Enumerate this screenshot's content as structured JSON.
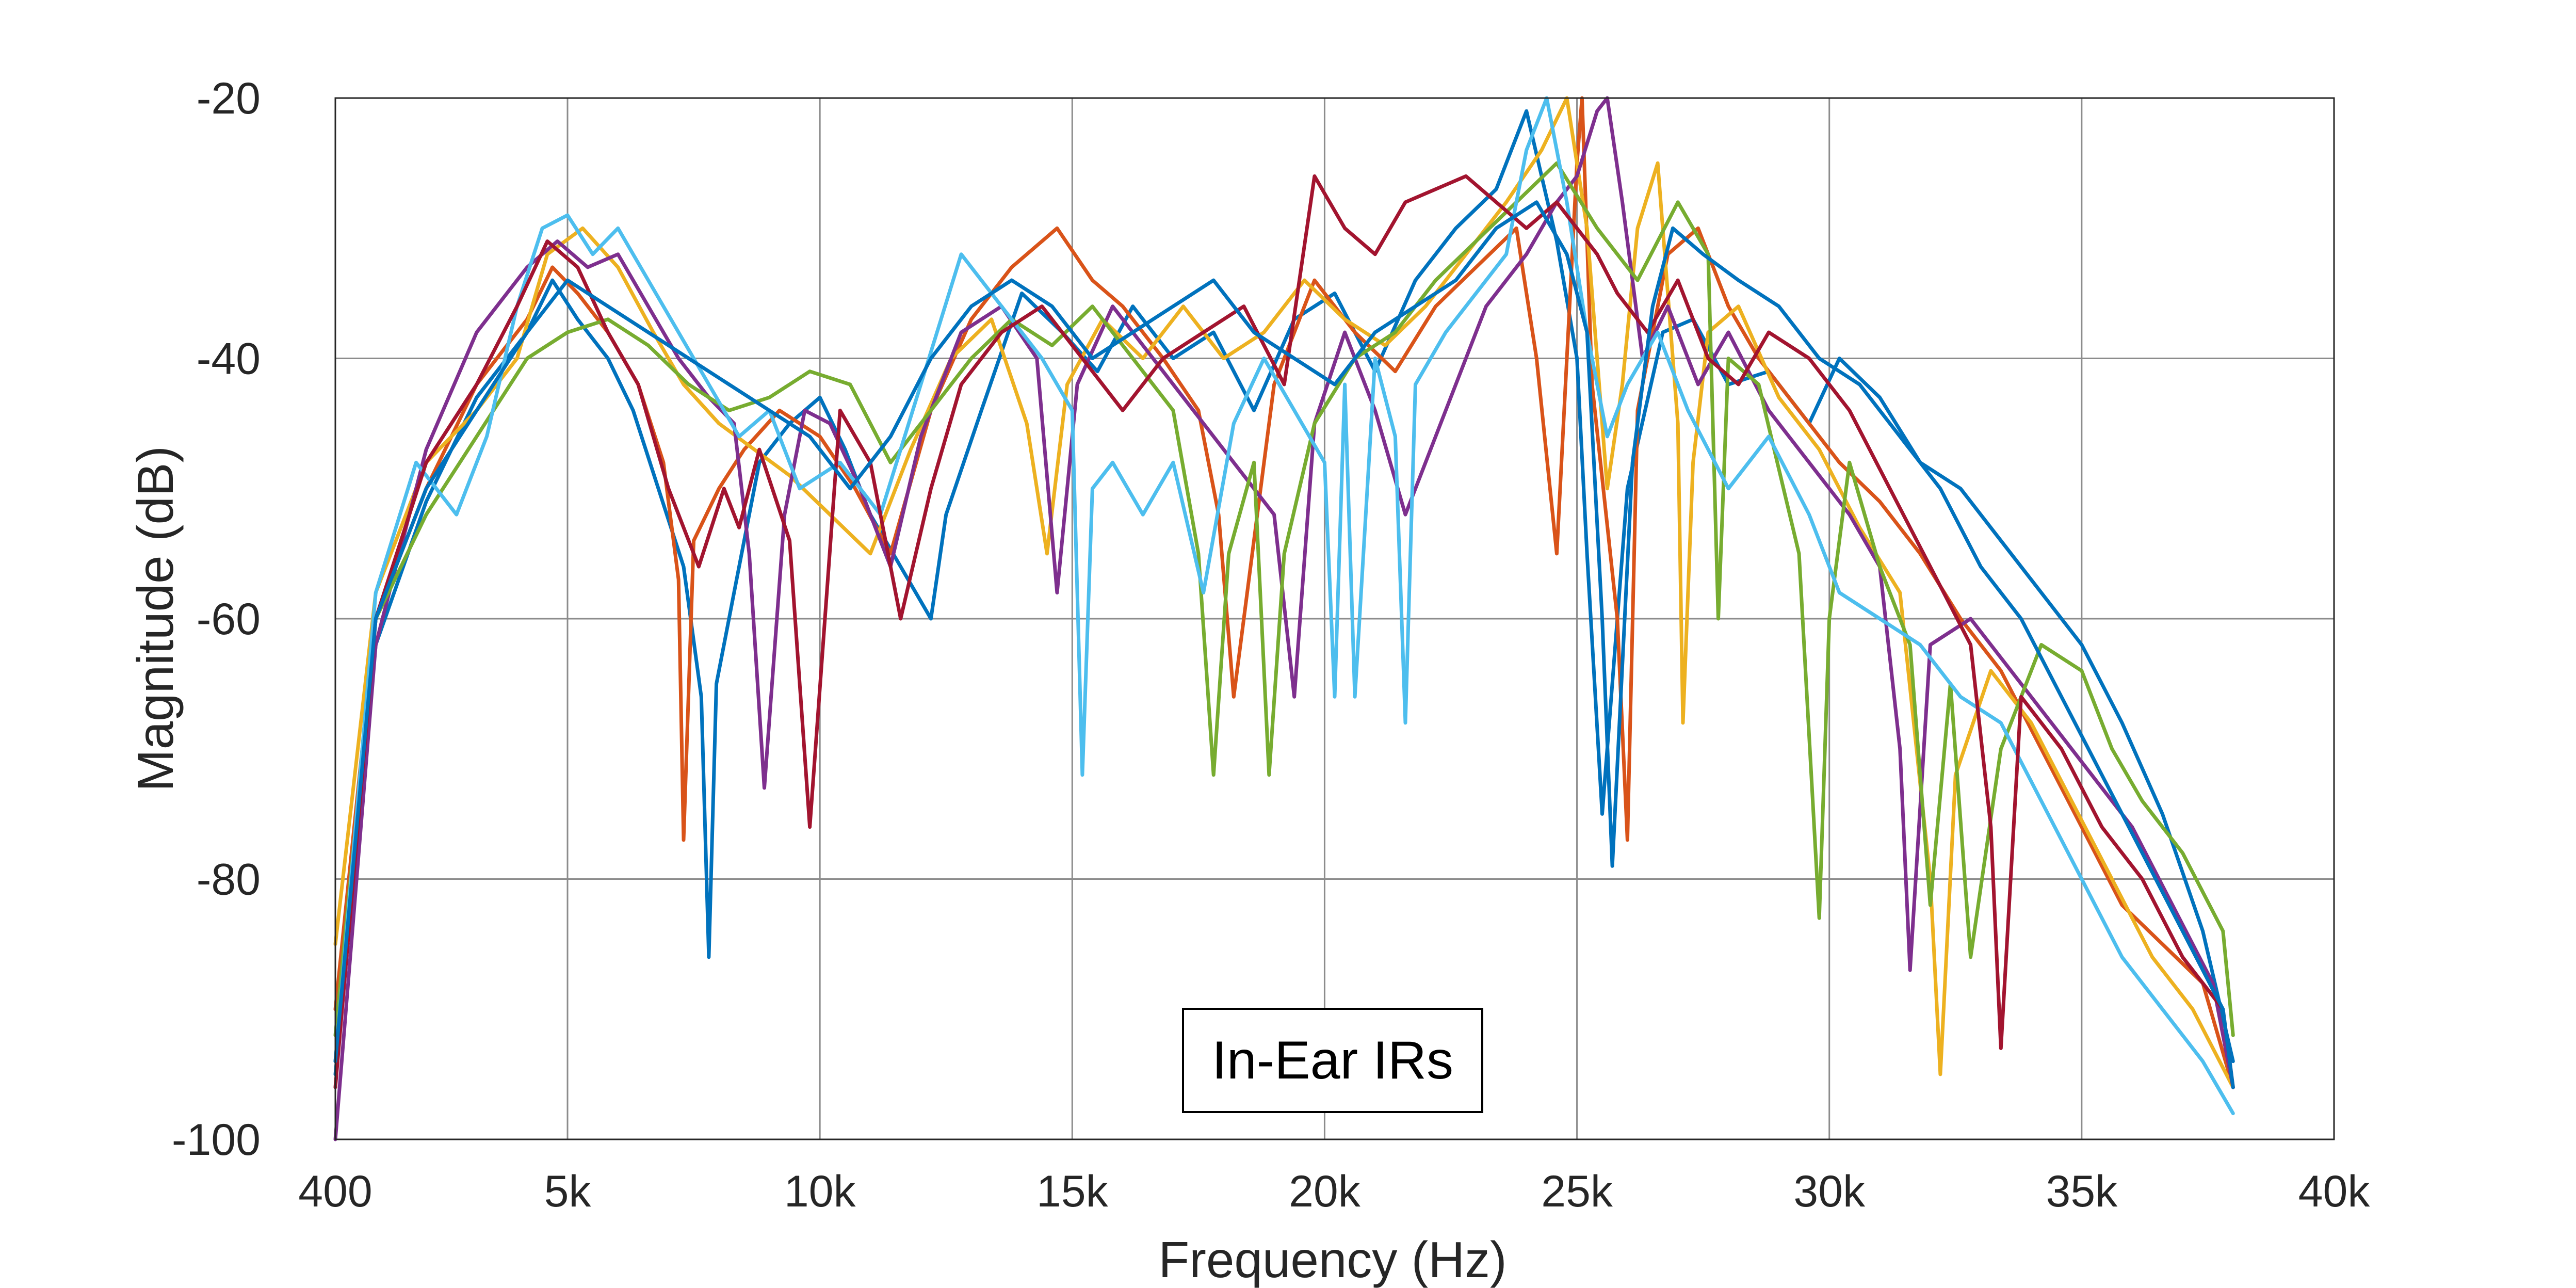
{
  "chart_data": {
    "type": "line",
    "title": "",
    "xlabel": "Frequency (Hz)",
    "ylabel": "Magnitude (dB)",
    "xlim": [
      400,
      40000
    ],
    "ylim": [
      -100,
      -20
    ],
    "x_ticks": [
      400,
      5000,
      10000,
      15000,
      20000,
      25000,
      30000,
      35000,
      40000
    ],
    "x_tick_labels": [
      "400",
      "5k",
      "10k",
      "15k",
      "20k",
      "25k",
      "30k",
      "35k",
      "40k"
    ],
    "y_ticks": [
      -100,
      -80,
      -60,
      -40,
      -20
    ],
    "y_tick_labels": [
      "-100",
      "-80",
      "-60",
      "-40",
      "-20"
    ],
    "grid": true,
    "legend": "none",
    "annotation": "In-Ear IRs",
    "series_note_count": 8,
    "series": [
      {
        "color": "#0072BD",
        "x": [
          400,
          1200,
          2200,
          3200,
          4200,
          4700,
          5200,
          5800,
          6300,
          6800,
          7300,
          7650,
          7800,
          7950,
          8300,
          8800,
          9400,
          10000,
          10500,
          11000,
          11600,
          12200,
          12500,
          13200,
          14000,
          14800,
          15500,
          16200,
          17000,
          17800,
          18600,
          19400,
          20200,
          21000,
          21800,
          22600,
          23400,
          24000,
          24600,
          25000,
          25200,
          25500,
          26000,
          26700,
          27300,
          28000,
          28800,
          29600,
          30200,
          31000,
          31800,
          32600,
          33400,
          34200,
          35000,
          35800,
          36600,
          37400,
          38000
        ],
        "y": [
          -95,
          -62,
          -51,
          -43,
          -38,
          -34,
          -37,
          -40,
          -44,
          -50,
          -56,
          -66,
          -86,
          -65,
          -58,
          -48,
          -45,
          -43,
          -47,
          -52,
          -56,
          -60,
          -52,
          -44,
          -35,
          -38,
          -41,
          -36,
          -40,
          -38,
          -44,
          -37,
          -35,
          -41,
          -34,
          -30,
          -27,
          -21,
          -31,
          -40,
          -55,
          -75,
          -50,
          -38,
          -37,
          -42,
          -41,
          -45,
          -40,
          -43,
          -48,
          -50,
          -54,
          -58,
          -62,
          -68,
          -75,
          -84,
          -94
        ]
      },
      {
        "color": "#D95319",
        "x": [
          400,
          1200,
          2200,
          3200,
          4200,
          4700,
          5200,
          5800,
          6400,
          6900,
          7200,
          7300,
          7500,
          8000,
          8500,
          9200,
          10000,
          10700,
          11400,
          12200,
          13000,
          13800,
          14700,
          15400,
          16000,
          16800,
          17500,
          17900,
          18200,
          19000,
          19800,
          20600,
          21400,
          22200,
          23000,
          23800,
          24200,
          24600,
          25000,
          25100,
          25300,
          25800,
          26000,
          26200,
          26800,
          27400,
          28000,
          28600,
          29400,
          30200,
          31000,
          31800,
          32600,
          33400,
          34200,
          35000,
          35800,
          36600,
          37400,
          38000
        ],
        "y": [
          -90,
          -60,
          -50,
          -42,
          -37,
          -33,
          -35,
          -38,
          -42,
          -48,
          -57,
          -77,
          -54,
          -50,
          -47,
          -44,
          -46,
          -50,
          -55,
          -44,
          -37,
          -33,
          -30,
          -34,
          -36,
          -40,
          -44,
          -52,
          -66,
          -42,
          -34,
          -38,
          -41,
          -36,
          -33,
          -30,
          -40,
          -55,
          -25,
          -20,
          -42,
          -60,
          -77,
          -44,
          -32,
          -30,
          -36,
          -40,
          -44,
          -48,
          -51,
          -55,
          -60,
          -64,
          -70,
          -76,
          -82,
          -85,
          -88,
          -96
        ]
      },
      {
        "color": "#EDB120",
        "x": [
          400,
          1200,
          2200,
          3200,
          4000,
          4600,
          5300,
          6000,
          6700,
          7300,
          8000,
          8700,
          9400,
          10200,
          11000,
          11800,
          12600,
          13400,
          14100,
          14500,
          14900,
          15600,
          16400,
          17200,
          18000,
          18800,
          19600,
          20400,
          21200,
          22000,
          22800,
          23600,
          24300,
          24800,
          25200,
          25600,
          25900,
          26200,
          26600,
          27000,
          27100,
          27300,
          27600,
          28200,
          29000,
          29800,
          30600,
          31400,
          32000,
          32200,
          32500,
          33200,
          34000,
          34800,
          35600,
          36400,
          37200,
          38000
        ],
        "y": [
          -85,
          -58,
          -48,
          -44,
          -40,
          -32,
          -30,
          -33,
          -38,
          -42,
          -45,
          -47,
          -49,
          -52,
          -55,
          -47,
          -40,
          -37,
          -45,
          -55,
          -42,
          -37,
          -40,
          -36,
          -40,
          -38,
          -34,
          -37,
          -39,
          -36,
          -32,
          -28,
          -24,
          -20,
          -30,
          -50,
          -42,
          -30,
          -25,
          -45,
          -68,
          -48,
          -38,
          -36,
          -43,
          -47,
          -53,
          -58,
          -80,
          -95,
          -72,
          -64,
          -68,
          -74,
          -80,
          -86,
          -90,
          -96
        ]
      },
      {
        "color": "#7E2F8E",
        "x": [
          400,
          1200,
          2200,
          3200,
          4200,
          4800,
          5400,
          6000,
          6600,
          7200,
          7800,
          8300,
          8600,
          8900,
          9300,
          9700,
          10200,
          10800,
          11400,
          12000,
          12800,
          13600,
          14300,
          14700,
          15100,
          15800,
          16600,
          17400,
          18200,
          19000,
          19400,
          19800,
          20400,
          21000,
          21600,
          22400,
          23200,
          24000,
          24600,
          25000,
          25400,
          25600,
          25900,
          26300,
          26800,
          27400,
          28000,
          28800,
          29600,
          30400,
          31000,
          31400,
          31600,
          32000,
          32800,
          33600,
          34400,
          35200,
          36000,
          36800,
          37600,
          38000
        ],
        "y": [
          -100,
          -62,
          -47,
          -38,
          -33,
          -31,
          -33,
          -32,
          -36,
          -40,
          -43,
          -45,
          -55,
          -73,
          -52,
          -44,
          -45,
          -50,
          -56,
          -46,
          -38,
          -36,
          -40,
          -58,
          -42,
          -36,
          -40,
          -44,
          -48,
          -52,
          -66,
          -45,
          -38,
          -44,
          -52,
          -44,
          -36,
          -32,
          -28,
          -26,
          -21,
          -20,
          -28,
          -40,
          -36,
          -42,
          -38,
          -44,
          -48,
          -52,
          -56,
          -70,
          -87,
          -62,
          -60,
          -64,
          -68,
          -72,
          -76,
          -82,
          -88,
          -96
        ]
      },
      {
        "color": "#77AC30",
        "x": [
          400,
          1200,
          2200,
          3200,
          4200,
          5000,
          5800,
          6600,
          7400,
          8200,
          9000,
          9800,
          10600,
          11400,
          12200,
          13000,
          13800,
          14600,
          15400,
          16200,
          17000,
          17500,
          17800,
          18100,
          18600,
          18900,
          19200,
          19800,
          20600,
          21400,
          22200,
          23000,
          23800,
          24600,
          25400,
          26200,
          27000,
          27600,
          27800,
          28000,
          28600,
          29400,
          29800,
          30000,
          30400,
          31000,
          31600,
          32000,
          32400,
          32800,
          33400,
          34200,
          35000,
          35600,
          36200,
          37000,
          37800,
          38000
        ],
        "y": [
          -92,
          -60,
          -52,
          -46,
          -40,
          -38,
          -37,
          -39,
          -42,
          -44,
          -43,
          -41,
          -42,
          -48,
          -44,
          -40,
          -37,
          -39,
          -36,
          -40,
          -44,
          -55,
          -72,
          -55,
          -48,
          -72,
          -55,
          -45,
          -40,
          -38,
          -34,
          -31,
          -28,
          -25,
          -30,
          -34,
          -28,
          -32,
          -60,
          -40,
          -42,
          -55,
          -83,
          -60,
          -48,
          -56,
          -62,
          -82,
          -65,
          -86,
          -70,
          -62,
          -64,
          -70,
          -74,
          -78,
          -84,
          -92
        ]
      },
      {
        "color": "#4DBEEE",
        "x": [
          400,
          1200,
          2000,
          2800,
          3400,
          4000,
          4500,
          5000,
          5500,
          6000,
          6600,
          7200,
          7800,
          8400,
          9000,
          9600,
          10400,
          11200,
          12000,
          12800,
          13600,
          14400,
          15000,
          15200,
          15400,
          15800,
          16400,
          17000,
          17600,
          18200,
          18800,
          19400,
          20000,
          20200,
          20400,
          20600,
          21000,
          21400,
          21600,
          21800,
          22400,
          23000,
          23600,
          24000,
          24400,
          24800,
          25200,
          25600,
          26000,
          26600,
          27200,
          28000,
          28800,
          29600,
          30200,
          31000,
          31800,
          32600,
          33400,
          34200,
          35000,
          35800,
          36600,
          37400,
          38000
        ],
        "y": [
          -94,
          -58,
          -48,
          -52,
          -46,
          -36,
          -30,
          -29,
          -32,
          -30,
          -34,
          -38,
          -42,
          -46,
          -44,
          -50,
          -48,
          -52,
          -42,
          -32,
          -36,
          -40,
          -44,
          -72,
          -50,
          -48,
          -52,
          -48,
          -58,
          -45,
          -40,
          -44,
          -48,
          -66,
          -42,
          -66,
          -40,
          -46,
          -68,
          -42,
          -38,
          -35,
          -32,
          -24,
          -20,
          -28,
          -38,
          -46,
          -42,
          -38,
          -44,
          -50,
          -46,
          -52,
          -58,
          -60,
          -62,
          -66,
          -68,
          -74,
          -80,
          -86,
          -90,
          -94,
          -98
        ]
      },
      {
        "color": "#A2142F",
        "x": [
          400,
          1200,
          2200,
          3200,
          4000,
          4600,
          5200,
          5800,
          6400,
          7000,
          7600,
          8100,
          8400,
          8800,
          9400,
          9800,
          10400,
          11000,
          11600,
          12200,
          12800,
          13600,
          14400,
          15200,
          16000,
          16800,
          17600,
          18400,
          19200,
          19800,
          20400,
          21000,
          21600,
          22200,
          22800,
          23400,
          24000,
          24600,
          25000,
          25400,
          25800,
          26400,
          27000,
          27600,
          28200,
          28800,
          29600,
          30400,
          31200,
          32000,
          32800,
          33200,
          33400,
          33800,
          34600,
          35400,
          36200,
          37000,
          37800,
          38000
        ],
        "y": [
          -96,
          -60,
          -48,
          -42,
          -36,
          -31,
          -33,
          -38,
          -42,
          -50,
          -56,
          -50,
          -53,
          -47,
          -54,
          -76,
          -44,
          -48,
          -60,
          -50,
          -42,
          -38,
          -36,
          -40,
          -44,
          -40,
          -38,
          -36,
          -42,
          -26,
          -30,
          -32,
          -28,
          -27,
          -26,
          -28,
          -30,
          -28,
          -30,
          -32,
          -35,
          -38,
          -34,
          -40,
          -42,
          -38,
          -40,
          -44,
          -50,
          -56,
          -62,
          -76,
          -93,
          -66,
          -70,
          -76,
          -80,
          -86,
          -90,
          -96
        ]
      },
      {
        "color": "#0072BD",
        "x": [
          400,
          1200,
          2200,
          3200,
          4200,
          5000,
          5800,
          6600,
          7400,
          8200,
          9000,
          9800,
          10600,
          11400,
          12200,
          13000,
          13800,
          14600,
          15400,
          16200,
          17000,
          17800,
          18600,
          19400,
          20200,
          21000,
          21800,
          22600,
          23400,
          24200,
          24800,
          25200,
          25500,
          25700,
          26100,
          26500,
          26900,
          27500,
          28200,
          29000,
          29800,
          30600,
          31400,
          32200,
          33000,
          33800,
          34600,
          35400,
          36200,
          37000,
          37800,
          38000
        ],
        "y": [
          -94,
          -60,
          -50,
          -44,
          -38,
          -34,
          -36,
          -38,
          -40,
          -42,
          -44,
          -46,
          -50,
          -46,
          -40,
          -36,
          -34,
          -36,
          -40,
          -38,
          -36,
          -34,
          -38,
          -40,
          -42,
          -38,
          -36,
          -34,
          -30,
          -28,
          -32,
          -38,
          -60,
          -79,
          -48,
          -36,
          -30,
          -32,
          -34,
          -36,
          -40,
          -42,
          -46,
          -50,
          -56,
          -60,
          -66,
          -72,
          -78,
          -84,
          -90,
          -96
        ]
      }
    ]
  }
}
